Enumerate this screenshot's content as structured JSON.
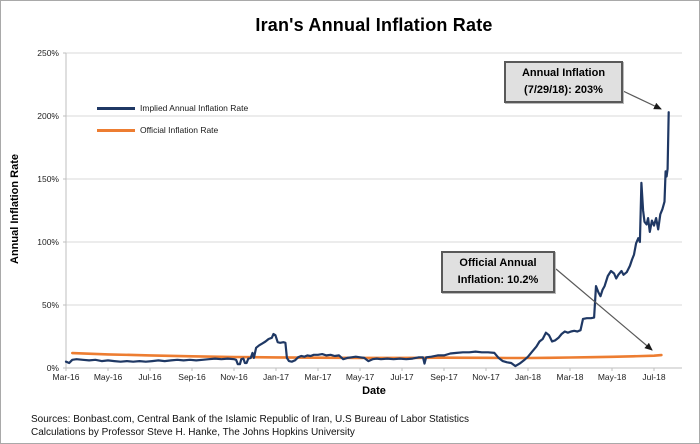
{
  "title": "Iran's Annual Inflation Rate",
  "y_axis": {
    "title": "Annual Inflation Rate",
    "ticks": [
      "250%",
      "200%",
      "150%",
      "100%",
      "50%",
      "0%"
    ]
  },
  "x_axis": {
    "title": "Date",
    "ticks": [
      "Mar-16",
      "May-16",
      "Jul-16",
      "Sep-16",
      "Nov-16",
      "Jan-17",
      "Mar-17",
      "May-17",
      "Jul-17",
      "Sep-17",
      "Nov-17",
      "Jan-18",
      "Mar-18",
      "May-18",
      "Jul-18"
    ]
  },
  "legend": [
    {
      "label": "Implied Annual Inflation Rate",
      "color": "#1f3864"
    },
    {
      "label": "Official Inflation Rate",
      "color": "#ed7d31"
    }
  ],
  "annotations": [
    {
      "name": "peak-callout",
      "lines": [
        "Annual Inflation",
        "(7/29/18): 203%"
      ]
    },
    {
      "name": "official-callout",
      "lines": [
        "Official Annual",
        "Inflation: 10.2%"
      ]
    }
  ],
  "footer": {
    "line1": "Sources: Bonbast.com, Central Bank of the Islamic Republic of Iran, U.S Bureau of Labor Statistics",
    "line2": "Calculations by Professor Steve H. Hanke, The Johns Hopkins University"
  },
  "chart_data": {
    "type": "line",
    "title": "Iran's Annual Inflation Rate",
    "xlabel": "Date",
    "ylabel": "Annual Inflation Rate",
    "ylim": [
      0,
      250
    ],
    "y_unit": "percent",
    "x_unit": "months since Mar-2016 (decimal); ticks every 2 months Mar-16 to Jul-18",
    "grid": true,
    "legend_position": "upper-left-inside",
    "highlights": [
      {
        "label": "Annual Inflation (7/29/18)",
        "value": 203
      },
      {
        "label": "Official Annual Inflation",
        "value": 10.2
      }
    ],
    "series": [
      {
        "name": "Implied Annual Inflation Rate",
        "color": "#1f3864",
        "width": 2.2,
        "points": [
          [
            0,
            5
          ],
          [
            0.15,
            4
          ],
          [
            0.3,
            6.5
          ],
          [
            0.5,
            7
          ],
          [
            0.8,
            6.5
          ],
          [
            1.1,
            6
          ],
          [
            1.4,
            6.5
          ],
          [
            1.7,
            5.5
          ],
          [
            2,
            6
          ],
          [
            2.3,
            5.5
          ],
          [
            2.6,
            5
          ],
          [
            2.9,
            5.5
          ],
          [
            3.2,
            5
          ],
          [
            3.5,
            5.5
          ],
          [
            3.8,
            5
          ],
          [
            4.1,
            5.5
          ],
          [
            4.4,
            6
          ],
          [
            4.7,
            5.5
          ],
          [
            5,
            6
          ],
          [
            5.3,
            6.5
          ],
          [
            5.6,
            6
          ],
          [
            5.9,
            6.5
          ],
          [
            6.2,
            6
          ],
          [
            6.5,
            6.5
          ],
          [
            6.8,
            7
          ],
          [
            7.1,
            7.5
          ],
          [
            7.4,
            7
          ],
          [
            7.7,
            7.5
          ],
          [
            8,
            7
          ],
          [
            8.1,
            6.5
          ],
          [
            8.18,
            3
          ],
          [
            8.28,
            3
          ],
          [
            8.35,
            7
          ],
          [
            8.45,
            7.5
          ],
          [
            8.52,
            4
          ],
          [
            8.6,
            4
          ],
          [
            8.68,
            7.5
          ],
          [
            8.8,
            8
          ],
          [
            8.88,
            12
          ],
          [
            8.95,
            8
          ],
          [
            9.05,
            16
          ],
          [
            9.2,
            18
          ],
          [
            9.35,
            19.5
          ],
          [
            9.5,
            21
          ],
          [
            9.65,
            23
          ],
          [
            9.8,
            24
          ],
          [
            9.88,
            27
          ],
          [
            9.97,
            26
          ],
          [
            10.08,
            20.5
          ],
          [
            10.2,
            20
          ],
          [
            10.35,
            20.5
          ],
          [
            10.45,
            20
          ],
          [
            10.52,
            8
          ],
          [
            10.62,
            5.5
          ],
          [
            10.75,
            5
          ],
          [
            10.9,
            6
          ],
          [
            11.05,
            8.5
          ],
          [
            11.2,
            9.5
          ],
          [
            11.35,
            9
          ],
          [
            11.5,
            10
          ],
          [
            11.65,
            9.5
          ],
          [
            11.8,
            10.5
          ],
          [
            12,
            10.5
          ],
          [
            12.2,
            11
          ],
          [
            12.4,
            10
          ],
          [
            12.6,
            10.5
          ],
          [
            12.8,
            9.5
          ],
          [
            13,
            10
          ],
          [
            13.2,
            7
          ],
          [
            13.4,
            8
          ],
          [
            13.6,
            8.5
          ],
          [
            13.8,
            9
          ],
          [
            14,
            8.5
          ],
          [
            14.2,
            8
          ],
          [
            14.4,
            5.5
          ],
          [
            14.6,
            7
          ],
          [
            14.8,
            7.5
          ],
          [
            15,
            7
          ],
          [
            15.3,
            7.5
          ],
          [
            15.6,
            7
          ],
          [
            15.9,
            7.5
          ],
          [
            16.2,
            7
          ],
          [
            16.5,
            7.5
          ],
          [
            16.8,
            8.5
          ],
          [
            17,
            8.5
          ],
          [
            17.07,
            3.5
          ],
          [
            17.15,
            8.5
          ],
          [
            17.4,
            9
          ],
          [
            17.7,
            10
          ],
          [
            18,
            10
          ],
          [
            18.3,
            11.5
          ],
          [
            18.6,
            12
          ],
          [
            18.9,
            12.5
          ],
          [
            19.2,
            12.5
          ],
          [
            19.5,
            13
          ],
          [
            19.8,
            12.5
          ],
          [
            20.1,
            12.5
          ],
          [
            20.4,
            12
          ],
          [
            20.6,
            8
          ],
          [
            20.8,
            5.5
          ],
          [
            21,
            4.5
          ],
          [
            21.2,
            4
          ],
          [
            21.4,
            1.5
          ],
          [
            21.6,
            3.5
          ],
          [
            21.8,
            6
          ],
          [
            22,
            9
          ],
          [
            22.2,
            13
          ],
          [
            22.4,
            17
          ],
          [
            22.55,
            21
          ],
          [
            22.7,
            23
          ],
          [
            22.85,
            28
          ],
          [
            23,
            26
          ],
          [
            23.15,
            21
          ],
          [
            23.3,
            22
          ],
          [
            23.45,
            24
          ],
          [
            23.6,
            27
          ],
          [
            23.75,
            29
          ],
          [
            23.9,
            28
          ],
          [
            24.05,
            29
          ],
          [
            24.2,
            29.5
          ],
          [
            24.35,
            29
          ],
          [
            24.5,
            30
          ],
          [
            24.62,
            39
          ],
          [
            24.8,
            39.5
          ],
          [
            25,
            39.5
          ],
          [
            25.15,
            40
          ],
          [
            25.24,
            65
          ],
          [
            25.35,
            60
          ],
          [
            25.45,
            57
          ],
          [
            25.55,
            62
          ],
          [
            25.65,
            65
          ],
          [
            25.8,
            73
          ],
          [
            25.95,
            77
          ],
          [
            26.1,
            75
          ],
          [
            26.2,
            71
          ],
          [
            26.3,
            74
          ],
          [
            26.45,
            77
          ],
          [
            26.55,
            74
          ],
          [
            26.7,
            76
          ],
          [
            26.85,
            81
          ],
          [
            26.95,
            86
          ],
          [
            27.05,
            90
          ],
          [
            27.15,
            99
          ],
          [
            27.25,
            103
          ],
          [
            27.33,
            100
          ],
          [
            27.4,
            147
          ],
          [
            27.48,
            125
          ],
          [
            27.55,
            116
          ],
          [
            27.65,
            114
          ],
          [
            27.72,
            119
          ],
          [
            27.8,
            108
          ],
          [
            27.9,
            117
          ],
          [
            28,
            113
          ],
          [
            28.1,
            119
          ],
          [
            28.2,
            110
          ],
          [
            28.3,
            122
          ],
          [
            28.4,
            126
          ],
          [
            28.5,
            132
          ],
          [
            28.55,
            156
          ],
          [
            28.6,
            152
          ],
          [
            28.65,
            158
          ],
          [
            28.7,
            203
          ]
        ]
      },
      {
        "name": "Official Inflation Rate",
        "color": "#ed7d31",
        "width": 2.6,
        "points": [
          [
            0.3,
            11.8
          ],
          [
            2,
            10.8
          ],
          [
            4,
            10
          ],
          [
            6,
            9.3
          ],
          [
            8,
            8.7
          ],
          [
            10,
            8.4
          ],
          [
            12,
            8.2
          ],
          [
            14,
            8
          ],
          [
            16,
            8
          ],
          [
            18,
            8.2
          ],
          [
            20,
            8.1
          ],
          [
            21,
            7.9
          ],
          [
            22,
            7.9
          ],
          [
            23,
            8.1
          ],
          [
            24,
            8.3
          ],
          [
            25,
            8.6
          ],
          [
            26,
            8.9
          ],
          [
            27,
            9.3
          ],
          [
            28,
            9.8
          ],
          [
            28.35,
            10.2
          ]
        ]
      }
    ]
  }
}
